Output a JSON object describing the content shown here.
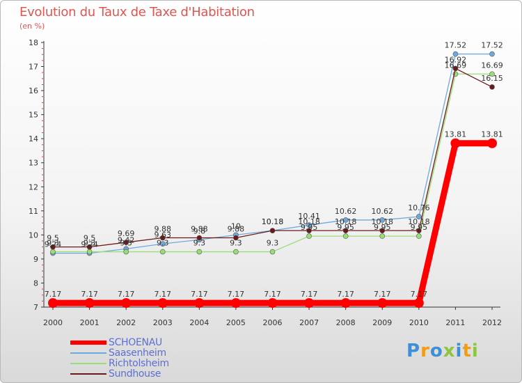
{
  "header": {
    "title": "Evolution du Taux de Taxe d'Habitation",
    "subtitle": "(en %)"
  },
  "chart_data": {
    "type": "line",
    "title": "Evolution du Taux de Taxe d'Habitation",
    "ylabel": "(en %)",
    "xlabel": "",
    "ylim": [
      7,
      18
    ],
    "yticks": [
      "7",
      "8",
      "9",
      "10",
      "11",
      "12",
      "13",
      "14",
      "15",
      "16",
      "17",
      "18"
    ],
    "x": [
      "2000",
      "2001",
      "2002",
      "2003",
      "2004",
      "2005",
      "2006",
      "2007",
      "2008",
      "2009",
      "2010",
      "2011",
      "2012"
    ],
    "series": [
      {
        "name": "SCHOENAU",
        "color": "#ff0000",
        "values": [
          7.17,
          7.17,
          7.17,
          7.17,
          7.17,
          7.17,
          7.17,
          7.17,
          7.17,
          7.17,
          7.17,
          13.81,
          13.81
        ],
        "labels": [
          "7.17",
          "7.17",
          "7.17",
          "7.17",
          "7.17",
          "7.17",
          "7.17",
          "7.17",
          "7.17",
          "7.17",
          "7.17",
          "13.81",
          "13.81"
        ]
      },
      {
        "name": "Saasenheim",
        "color": "#6fa8dc",
        "values": [
          9.24,
          9.24,
          9.42,
          9.63,
          9.8,
          10.0,
          10.18,
          10.41,
          10.62,
          10.62,
          10.76,
          17.52,
          17.52
        ],
        "labels": [
          "9.24",
          "9.24",
          "9.42",
          "9.63",
          "9.8",
          "10",
          "10.18",
          "10.41",
          "10.62",
          "10.62",
          "10.76",
          "17.52",
          "17.52"
        ]
      },
      {
        "name": "Richtolsheim",
        "color": "#99dd77",
        "values": [
          9.3,
          9.3,
          9.3,
          9.3,
          9.3,
          9.3,
          9.3,
          9.95,
          9.95,
          9.95,
          9.95,
          16.69,
          16.69
        ],
        "labels": [
          "9.3",
          "9.3",
          "9.3",
          "9.3",
          "9.3",
          "9.3",
          "9.3",
          "9.95",
          "9.95",
          "9.95",
          "9.95",
          "16.69",
          "16.69"
        ]
      },
      {
        "name": "Sundhouse",
        "color": "#6b1a1a",
        "values": [
          9.5,
          9.5,
          9.69,
          9.88,
          9.88,
          9.88,
          10.18,
          10.18,
          10.18,
          10.18,
          10.18,
          16.92,
          16.15
        ],
        "labels": [
          "9.5",
          "9.5",
          "9.69",
          "9.88",
          "9.88",
          "9.88",
          "10.18",
          "10.18",
          "10.18",
          "10.18",
          "10.18",
          "16.92",
          "16.15"
        ]
      }
    ],
    "legend_position": "bottom-left",
    "grid": false
  },
  "legend": {
    "items": [
      {
        "label": "SCHOENAU"
      },
      {
        "label": "Saasenheim"
      },
      {
        "label": "Richtolsheim"
      },
      {
        "label": "Sundhouse"
      }
    ]
  },
  "branding": {
    "logo_text": "Proxiti",
    "letters": [
      "P",
      "r",
      "o",
      "x",
      "i",
      "t",
      "i"
    ],
    "letter_colors": [
      "#3f8fd8",
      "#f39c12",
      "#3f8fd8",
      "#8cc63f",
      "#3f8fd8",
      "#f39c12",
      "#8cc63f"
    ]
  }
}
